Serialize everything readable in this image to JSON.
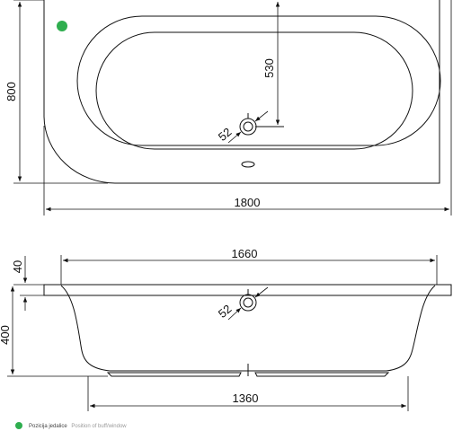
{
  "top_view": {
    "length": "1800",
    "width": "800",
    "drain_offset": "530",
    "drain_diameter": "52"
  },
  "side_view": {
    "rim_length": "1660",
    "rim_height": "40",
    "total_height": "400",
    "bottom_length": "1360",
    "drain_diameter": "52"
  },
  "legend": {
    "primary": "Pozicija jedalice",
    "secondary": "Position of buff/window"
  },
  "colors": {
    "marker": "#2fae4f",
    "line": "#111111"
  }
}
